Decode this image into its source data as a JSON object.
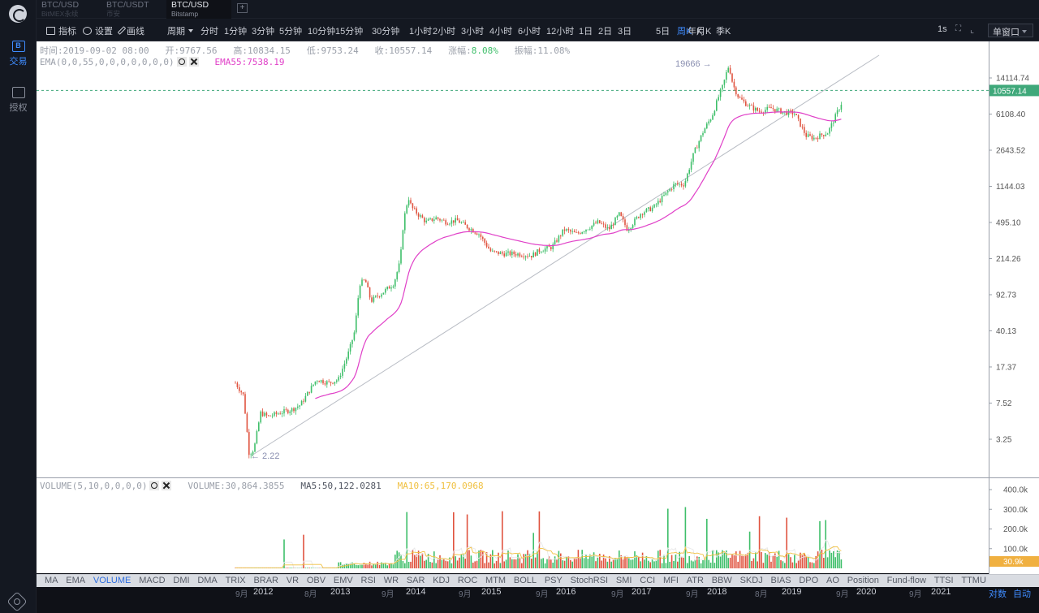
{
  "tabs": [
    {
      "pair": "BTC/USD",
      "exchange": "BitMEX永续"
    },
    {
      "pair": "BTC/USDT",
      "exchange": "币安"
    },
    {
      "pair": "BTC/USD",
      "exchange": "Bitstamp"
    }
  ],
  "tab_add": "+",
  "sidebar": {
    "trade": "交易",
    "trade_icon": "B",
    "auth": "授权"
  },
  "toolbar": {
    "indicators": "指标",
    "settings": "设置",
    "draw": "画线",
    "period": "周期",
    "intervals": [
      "分时",
      "1分钟",
      "3分钟",
      "5分钟",
      "10分钟",
      "15分钟",
      "30分钟",
      "1小时",
      "2小时",
      "3小时",
      "4小时",
      "6小时",
      "12小时",
      "1日",
      "2日",
      "3日",
      "5日",
      "周K",
      "月K",
      "季K",
      "年K"
    ],
    "active_interval": "周K",
    "speed": "1s",
    "window": "单窗口"
  },
  "ohlc": {
    "time_label": "时间:",
    "time": "2019-09-02 08:00",
    "open_label": "开:",
    "open": "9767.56",
    "high_label": "高:",
    "high": "10834.15",
    "low_label": "低:",
    "low": "9753.24",
    "close_label": "收:",
    "close": "10557.14",
    "change_label": "涨幅:",
    "change": "8.08%",
    "amp_label": "振幅:",
    "amp": "11.08%"
  },
  "ema": {
    "label": "EMA(0,0,55,0,0,0,0,0,0,0)",
    "value_label": "EMA55:7538.19",
    "color": "#e040c8"
  },
  "volume": {
    "label": "VOLUME(5,10,0,0,0,0)",
    "value": "VOLUME:30,864.3855",
    "ma5": "MA5:50,122.0281",
    "ma10": "MA10:65,170.0968",
    "current": "30.9k",
    "axis": [
      "400.0k",
      "300.0k",
      "200.0k",
      "100.0k"
    ]
  },
  "price_axis": [
    "14114.74",
    "6108.40",
    "2643.52",
    "1144.03",
    "495.10",
    "214.26",
    "92.73",
    "40.13",
    "17.37",
    "7.52",
    "3.25"
  ],
  "last_price": "10557.14",
  "annotations": {
    "max": "19666",
    "min": "2.22"
  },
  "indicators": [
    "MA",
    "EMA",
    "VOLUME",
    "MACD",
    "DMI",
    "DMA",
    "TRIX",
    "BRAR",
    "VR",
    "OBV",
    "EMV",
    "RSI",
    "WR",
    "SAR",
    "KDJ",
    "ROC",
    "MTM",
    "BOLL",
    "PSY",
    "StochRSI",
    "SMI",
    "CCI",
    "MFI",
    "ATR",
    "BBW",
    "SKDJ",
    "BIAS",
    "DPO",
    "AO",
    "Position",
    "Fund-flow",
    "TTSI",
    "TTMU"
  ],
  "active_indicator": "VOLUME",
  "x_axis": [
    {
      "t": "9月",
      "year": false
    },
    {
      "t": "2012",
      "year": true
    },
    {
      "t": "8月",
      "year": false
    },
    {
      "t": "2013",
      "year": true
    },
    {
      "t": "9月",
      "year": false
    },
    {
      "t": "2014",
      "year": true
    },
    {
      "t": "9月",
      "year": false
    },
    {
      "t": "2015",
      "year": true
    },
    {
      "t": "9月",
      "year": false
    },
    {
      "t": "2016",
      "year": true
    },
    {
      "t": "9月",
      "year": false
    },
    {
      "t": "2017",
      "year": true
    },
    {
      "t": "9月",
      "year": false
    },
    {
      "t": "2018",
      "year": true
    },
    {
      "t": "8月",
      "year": false
    },
    {
      "t": "2019",
      "year": true
    },
    {
      "t": "9月",
      "year": false
    },
    {
      "t": "2020",
      "year": true
    },
    {
      "t": "9月",
      "year": false
    },
    {
      "t": "2021",
      "year": true
    }
  ],
  "scale": {
    "log": "对数",
    "auto": "自动"
  },
  "colors": {
    "up": "#3fbf6a",
    "down": "#e0533f",
    "ema": "#e040c8",
    "ma5": "#e8e8e8",
    "ma10": "#f0c040",
    "last_price_bg": "#3fa87a",
    "accent": "#3f8cff"
  }
}
